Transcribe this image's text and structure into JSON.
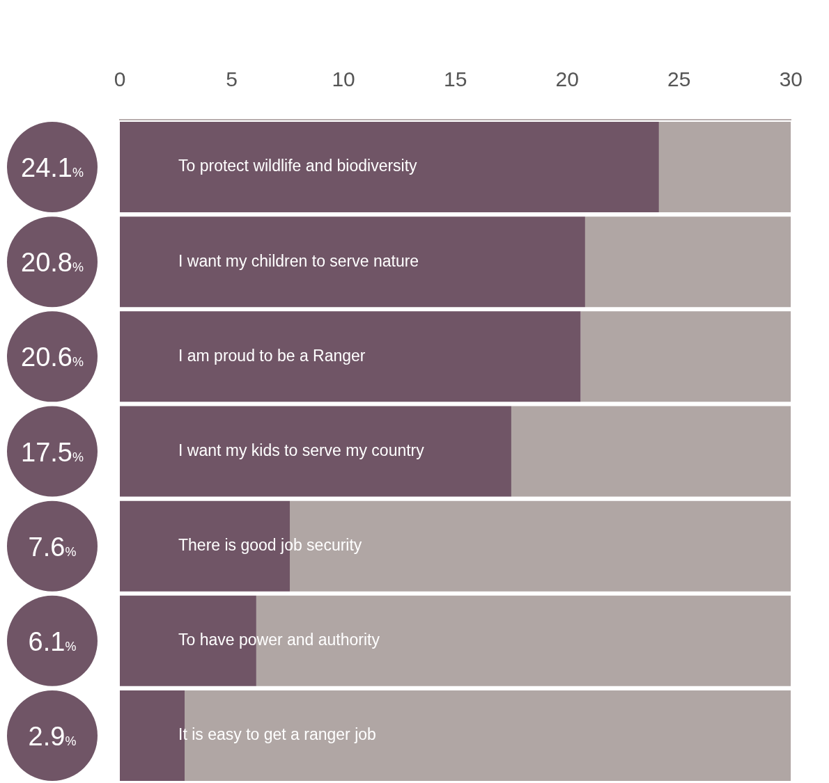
{
  "chart_data": {
    "type": "bar",
    "orientation": "horizontal",
    "stacked": true,
    "categories": [
      "To protect wildlife and biodiversity",
      "I want my children to serve nature",
      "I am proud to be a Ranger",
      "I want my kids to serve my country",
      "There is good job security",
      "To have power and authority",
      "It is easy to get a ranger job"
    ],
    "series": [
      {
        "color": "#705566",
        "values": [
          24.1,
          20.8,
          20.6,
          17.5,
          7.6,
          6.1,
          2.9
        ],
        "value_labels": [
          "24.1%",
          "20.8%",
          "20.6%",
          "17.5%",
          "7.6%",
          "6.1%",
          "2.9%"
        ]
      },
      {
        "color": "#b0a6a4",
        "values": [
          5.9,
          9.2,
          9.4,
          12.5,
          22.4,
          23.9,
          27.1
        ]
      }
    ],
    "xlim": [
      0,
      30
    ],
    "xticks": [
      0,
      5,
      10,
      15,
      20,
      25,
      30
    ],
    "grid": false,
    "legend": false
  }
}
